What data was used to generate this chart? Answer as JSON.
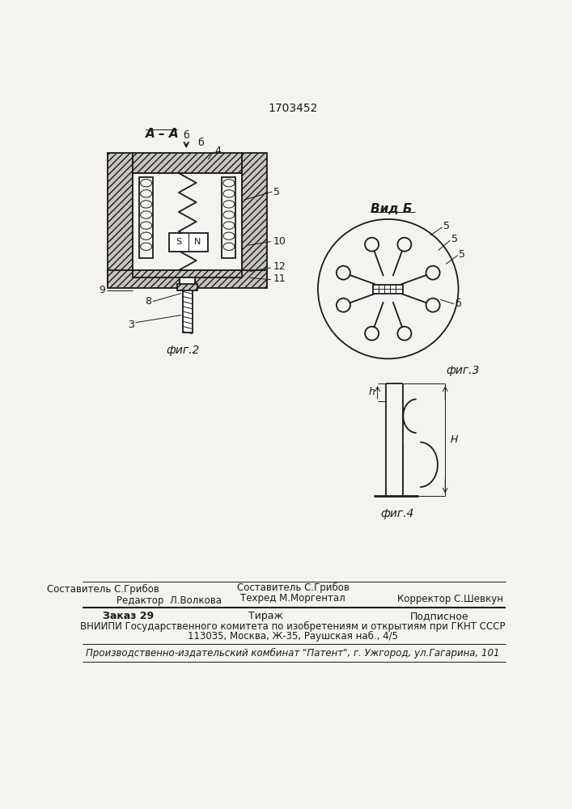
{
  "patent_number": "1703452",
  "bg_color": "#f5f3ef",
  "line_color": "#1a1a1a",
  "fig2_label": "фиг.2",
  "fig3_label": "фиг.3",
  "fig4_label": "фиг.4",
  "section_label": "А – А",
  "view_label": "Вид Б",
  "footer_line1_left": "Редактор  Л.Волкова",
  "footer_line1_center1": "Составитель С.Грибов",
  "footer_line1_center2": "Техред М.Моргентал",
  "footer_line1_right": "Корректор С.Шевкун",
  "footer_line2_col1": "Заказ 29",
  "footer_line2_col2": "Тираж",
  "footer_line2_col3": "Подписное",
  "footer_line3": "ВНИИПИ Государственного комитета по изобретениям и открытиям при ГКНТ СССР",
  "footer_line4": "113035, Москва, Ж-35, Раушская наб., 4/5",
  "footer_line5": "Производственно-издательский комбинат \"Патент\", г. Ужгород, ул.Гагарина, 101"
}
